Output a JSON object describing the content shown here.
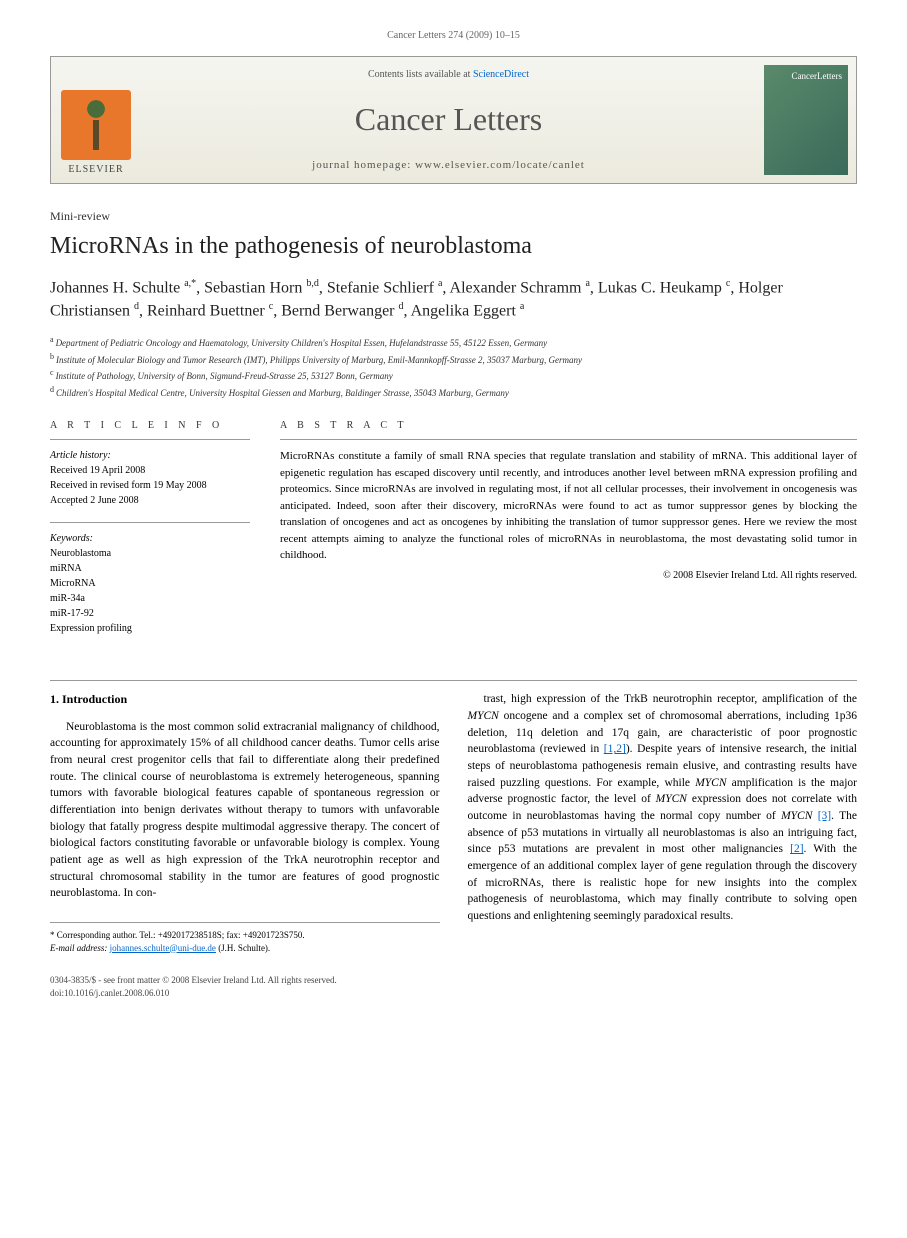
{
  "running_head": "Cancer Letters 274 (2009) 10–15",
  "masthead": {
    "publisher": "ELSEVIER",
    "contents_prefix": "Contents lists available at ",
    "contents_link": "ScienceDirect",
    "journal_name": "Cancer Letters",
    "homepage_prefix": "journal homepage: ",
    "homepage_url": "www.elsevier.com/locate/canlet",
    "cover_label": "CancerLetters"
  },
  "article_type": "Mini-review",
  "title": "MicroRNAs in the pathogenesis of neuroblastoma",
  "authors_html": "Johannes H. Schulte <sup>a,*</sup>, Sebastian Horn <sup>b,d</sup>, Stefanie Schlierf <sup>a</sup>, Alexander Schramm <sup>a</sup>, Lukas C. Heukamp <sup>c</sup>, Holger Christiansen <sup>d</sup>, Reinhard Buettner <sup>c</sup>, Bernd Berwanger <sup>d</sup>, Angelika Eggert <sup>a</sup>",
  "affiliations": [
    {
      "key": "a",
      "text": "Department of Pediatric Oncology and Haematology, University Children's Hospital Essen, Hufelandstrasse 55, 45122 Essen, Germany"
    },
    {
      "key": "b",
      "text": "Institute of Molecular Biology and Tumor Research (IMT), Philipps University of Marburg, Emil-Mannkopff-Strasse 2, 35037 Marburg, Germany"
    },
    {
      "key": "c",
      "text": "Institute of Pathology, University of Bonn, Sigmund-Freud-Strasse 25, 53127 Bonn, Germany"
    },
    {
      "key": "d",
      "text": "Children's Hospital Medical Centre, University Hospital Giessen and Marburg, Baldinger Strasse, 35043 Marburg, Germany"
    }
  ],
  "info": {
    "heading": "A R T I C L E   I N F O",
    "history_label": "Article history:",
    "received": "Received 19 April 2008",
    "revised": "Received in revised form 19 May 2008",
    "accepted": "Accepted 2 June 2008",
    "keywords_label": "Keywords:",
    "keywords": [
      "Neuroblastoma",
      "miRNA",
      "MicroRNA",
      "miR-34a",
      "miR-17-92",
      "Expression profiling"
    ]
  },
  "abstract": {
    "heading": "A B S T R A C T",
    "text": "MicroRNAs constitute a family of small RNA species that regulate translation and stability of mRNA. This additional layer of epigenetic regulation has escaped discovery until recently, and introduces another level between mRNA expression profiling and proteomics. Since microRNAs are involved in regulating most, if not all cellular processes, their involvement in oncogenesis was anticipated. Indeed, soon after their discovery, microRNAs were found to act as tumor suppressor genes by blocking the translation of oncogenes and act as oncogenes by inhibiting the translation of tumor suppressor genes. Here we review the most recent attempts aiming to analyze the functional roles of microRNAs in neuroblastoma, the most devastating solid tumor in childhood.",
    "copyright": "© 2008 Elsevier Ireland Ltd. All rights reserved."
  },
  "body": {
    "section_heading": "1. Introduction",
    "col1": "Neuroblastoma is the most common solid extracranial malignancy of childhood, accounting for approximately 15% of all childhood cancer deaths. Tumor cells arise from neural crest progenitor cells that fail to differentiate along their predefined route. The clinical course of neuroblastoma is extremely heterogeneous, spanning tumors with favorable biological features capable of spontaneous regression or differentiation into benign derivates without therapy to tumors with unfavorable biology that fatally progress despite multimodal aggressive therapy. The concert of biological factors constituting favorable or unfavorable biology is complex. Young patient age as well as high expression of the TrkA neurotrophin receptor and structural chromosomal stability in the tumor are features of good prognostic neuroblastoma. In con-",
    "col2_parts": [
      {
        "t": "text",
        "v": "trast, high expression of the TrkB neurotrophin receptor, amplification of the "
      },
      {
        "t": "ital",
        "v": "MYCN"
      },
      {
        "t": "text",
        "v": " oncogene and a complex set of chromosomal aberrations, including 1p36 deletion, 11q deletion and 17q gain, are characteristic of poor prognostic neuroblastoma (reviewed in "
      },
      {
        "t": "ref",
        "v": "[1,2]"
      },
      {
        "t": "text",
        "v": "). Despite years of intensive research, the initial steps of neuroblastoma pathogenesis remain elusive, and contrasting results have raised puzzling questions. For example, while "
      },
      {
        "t": "ital",
        "v": "MYCN"
      },
      {
        "t": "text",
        "v": " amplification is the major adverse prognostic factor, the level of "
      },
      {
        "t": "ital",
        "v": "MYCN"
      },
      {
        "t": "text",
        "v": " expression does not correlate with outcome in neuroblastomas having the normal copy number of "
      },
      {
        "t": "ital",
        "v": "MYCN"
      },
      {
        "t": "text",
        "v": " "
      },
      {
        "t": "ref",
        "v": "[3]"
      },
      {
        "t": "text",
        "v": ". The absence of p53 mutations in virtually all neuroblastomas is also an intriguing fact, since p53 mutations are prevalent in most other malignancies "
      },
      {
        "t": "ref",
        "v": "[2]"
      },
      {
        "t": "text",
        "v": ". With the emergence of an additional complex layer of gene regulation through the discovery of microRNAs, there is realistic hope for new insights into the complex pathogenesis of neuroblastoma, which may finally contribute to solving open questions and enlightening seemingly paradoxical results."
      }
    ]
  },
  "footnote": {
    "corresponding": "* Corresponding author. Tel.: +492017238518S; fax: +49201723S750.",
    "email_label": "E-mail address:",
    "email": "johannes.schulte@uni-due.de",
    "email_suffix": " (J.H. Schulte)."
  },
  "footer": {
    "line1": "0304-3835/$ - see front matter © 2008 Elsevier Ireland Ltd. All rights reserved.",
    "line2": "doi:10.1016/j.canlet.2008.06.010"
  },
  "colors": {
    "link": "#0066cc",
    "elsevier_orange": "#e8772b",
    "cover_green": "#4a7a5f"
  }
}
